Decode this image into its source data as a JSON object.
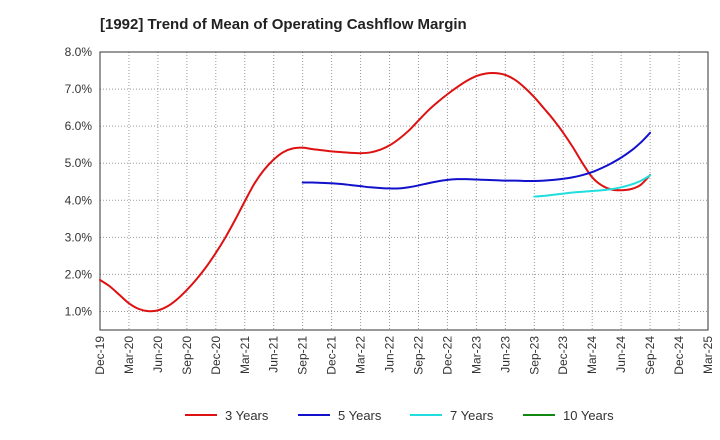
{
  "chart_data": {
    "type": "line",
    "title": "[1992]  Trend of Mean of Operating Cashflow Margin",
    "xlabel": "",
    "ylabel": "",
    "x_categories": [
      "Dec-19",
      "Mar-20",
      "Jun-20",
      "Sep-20",
      "Dec-20",
      "Mar-21",
      "Jun-21",
      "Sep-21",
      "Dec-21",
      "Mar-22",
      "Jun-22",
      "Sep-22",
      "Dec-22",
      "Mar-23",
      "Jun-23",
      "Sep-23",
      "Dec-23",
      "Mar-24",
      "Jun-24",
      "Sep-24",
      "Dec-24",
      "Mar-25"
    ],
    "y_ticks": [
      "1.0%",
      "2.0%",
      "3.0%",
      "4.0%",
      "5.0%",
      "6.0%",
      "7.0%",
      "8.0%"
    ],
    "ylim": [
      0.5,
      8.0
    ],
    "grid": true,
    "legend_position": "bottom",
    "series": [
      {
        "name": "3 Years",
        "color": "#dd1111",
        "x": [
          "Dec-19",
          "Jan-20",
          "Feb-20",
          "Mar-20",
          "Apr-20",
          "May-20",
          "Jun-20",
          "Jul-20",
          "Aug-20",
          "Sep-20",
          "Oct-20",
          "Nov-20",
          "Dec-20",
          "Jan-21",
          "Feb-21",
          "Mar-21",
          "Apr-21",
          "May-21",
          "Jun-21",
          "Jul-21",
          "Aug-21",
          "Sep-21",
          "Oct-21",
          "Nov-21",
          "Dec-21",
          "Jan-22",
          "Feb-22",
          "Mar-22",
          "Apr-22",
          "May-22",
          "Jun-22",
          "Jul-22",
          "Aug-22",
          "Sep-22",
          "Oct-22",
          "Nov-22",
          "Dec-22",
          "Jan-23",
          "Feb-23",
          "Mar-23",
          "Apr-23",
          "May-23",
          "Jun-23",
          "Jul-23",
          "Aug-23",
          "Sep-23",
          "Oct-23",
          "Nov-23",
          "Dec-23",
          "Jan-24",
          "Feb-24",
          "Mar-24",
          "Apr-24",
          "May-24",
          "Jun-24",
          "Jul-24",
          "Aug-24",
          "Sep-24"
        ],
        "values": [
          1.85,
          1.68,
          1.45,
          1.22,
          1.07,
          1.01,
          1.03,
          1.14,
          1.33,
          1.58,
          1.87,
          2.2,
          2.58,
          3.0,
          3.47,
          3.97,
          4.45,
          4.82,
          5.1,
          5.3,
          5.4,
          5.42,
          5.38,
          5.35,
          5.32,
          5.3,
          5.28,
          5.27,
          5.29,
          5.36,
          5.48,
          5.66,
          5.88,
          6.15,
          6.42,
          6.65,
          6.86,
          7.05,
          7.22,
          7.35,
          7.42,
          7.43,
          7.38,
          7.25,
          7.04,
          6.78,
          6.48,
          6.17,
          5.82,
          5.43,
          5.0,
          4.62,
          4.4,
          4.29,
          4.27,
          4.3,
          4.41,
          4.68
        ]
      },
      {
        "name": "5 Years",
        "color": "#1111cc",
        "x": [
          "Sep-21",
          "Oct-21",
          "Nov-21",
          "Dec-21",
          "Jan-22",
          "Feb-22",
          "Mar-22",
          "Apr-22",
          "May-22",
          "Jun-22",
          "Jul-22",
          "Aug-22",
          "Sep-22",
          "Oct-22",
          "Nov-22",
          "Dec-22",
          "Jan-23",
          "Feb-23",
          "Mar-23",
          "Apr-23",
          "May-23",
          "Jun-23",
          "Jul-23",
          "Aug-23",
          "Sep-23",
          "Oct-23",
          "Nov-23",
          "Dec-23",
          "Jan-24",
          "Feb-24",
          "Mar-24",
          "Apr-24",
          "May-24",
          "Jun-24",
          "Jul-24",
          "Aug-24",
          "Sep-24"
        ],
        "values": [
          4.48,
          4.48,
          4.47,
          4.46,
          4.44,
          4.41,
          4.38,
          4.35,
          4.33,
          4.32,
          4.32,
          4.35,
          4.4,
          4.46,
          4.51,
          4.55,
          4.57,
          4.57,
          4.56,
          4.55,
          4.54,
          4.53,
          4.53,
          4.52,
          4.52,
          4.53,
          4.55,
          4.58,
          4.62,
          4.68,
          4.76,
          4.87,
          5.0,
          5.15,
          5.33,
          5.55,
          5.82
        ]
      },
      {
        "name": "7 Years",
        "color": "#22dddd",
        "x": [
          "Sep-23",
          "Oct-23",
          "Nov-23",
          "Dec-23",
          "Jan-24",
          "Feb-24",
          "Mar-24",
          "Apr-24",
          "May-24",
          "Jun-24",
          "Jul-24",
          "Aug-24",
          "Sep-24"
        ],
        "values": [
          4.1,
          4.12,
          4.15,
          4.18,
          4.21,
          4.23,
          4.25,
          4.27,
          4.3,
          4.35,
          4.42,
          4.52,
          4.67
        ]
      },
      {
        "name": "10 Years",
        "color": "#118811",
        "x": [],
        "values": []
      }
    ]
  }
}
